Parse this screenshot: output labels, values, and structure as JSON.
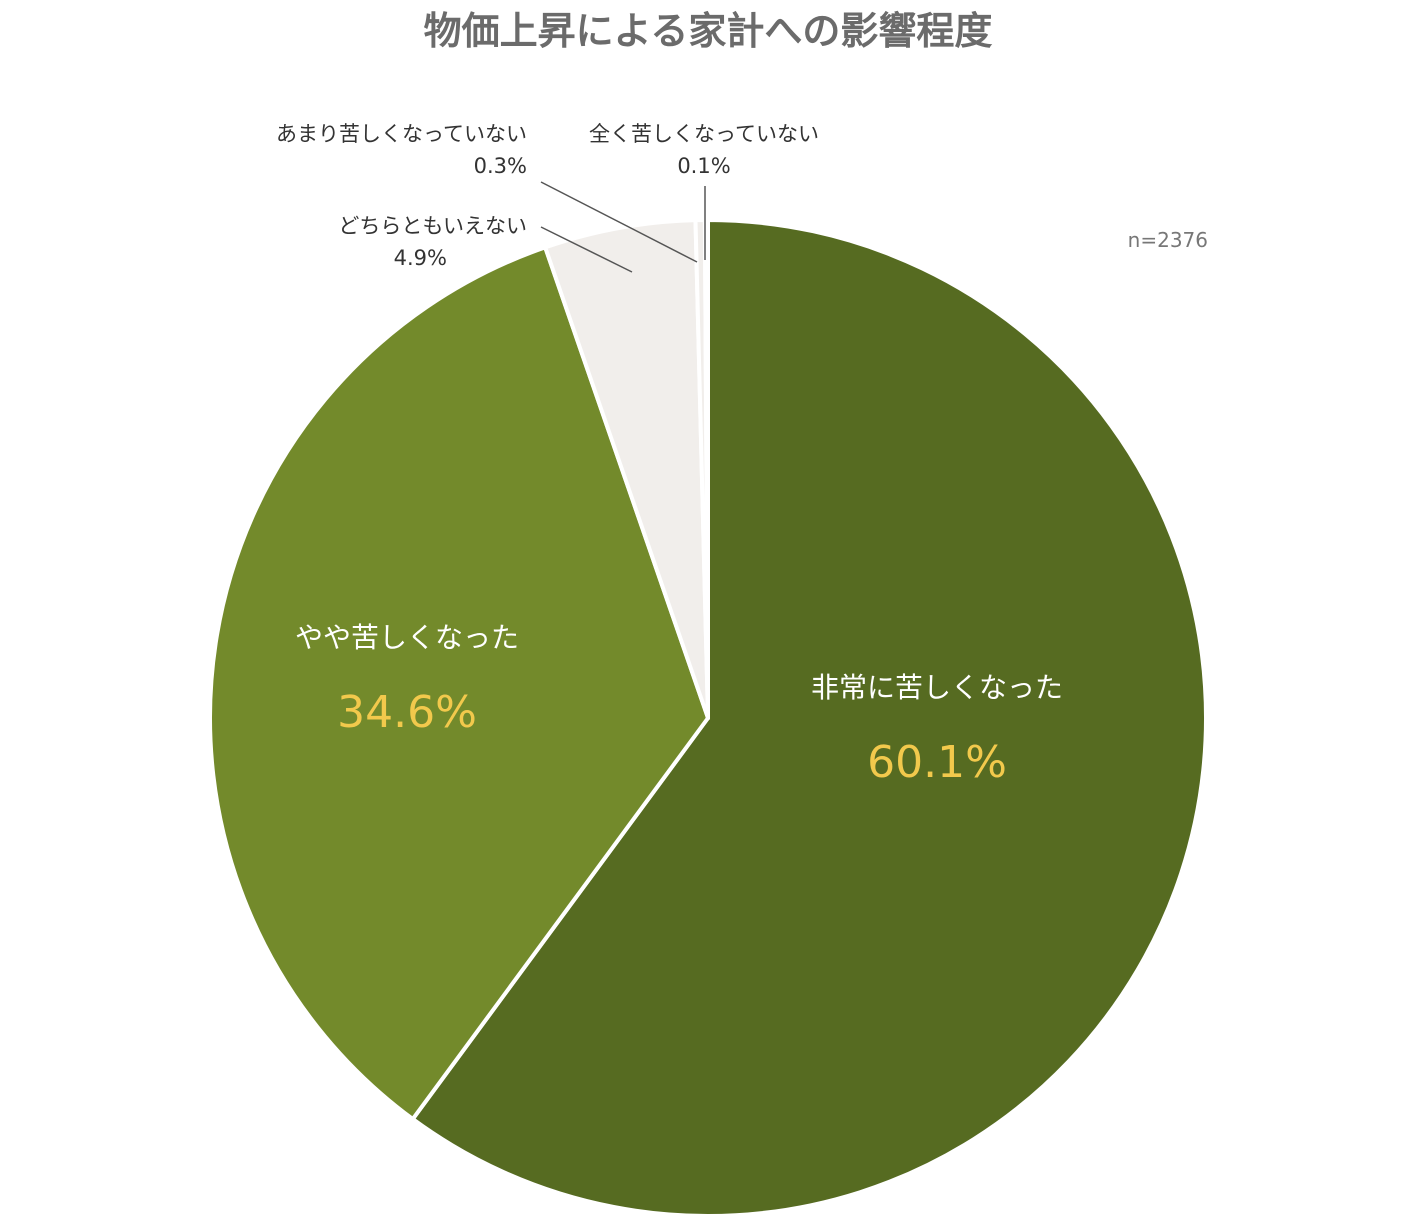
{
  "chart_data": {
    "type": "pie",
    "title": "物価上昇による家計への影響程度",
    "note": "n=2376",
    "slices": [
      {
        "label": "非常に苦しくなった",
        "value": 60.1,
        "value_label": "60.1%",
        "color": "#566b21"
      },
      {
        "label": "やや苦しくなった",
        "value": 34.6,
        "value_label": "34.6%",
        "color": "#738a2b"
      },
      {
        "label": "どちらともいえない",
        "value": 4.9,
        "value_label": "4.9%",
        "color": "#f1eeeb"
      },
      {
        "label": "あまり苦しくなっていない",
        "value": 0.3,
        "value_label": "0.3%",
        "color": "#f1eeeb"
      },
      {
        "label": "全く苦しくなっていない",
        "value": 0.1,
        "value_label": "0.1%",
        "color": "#f1eeeb"
      }
    ],
    "start_angle": "12 o'clock",
    "direction": "clockwise",
    "legend": "none"
  }
}
